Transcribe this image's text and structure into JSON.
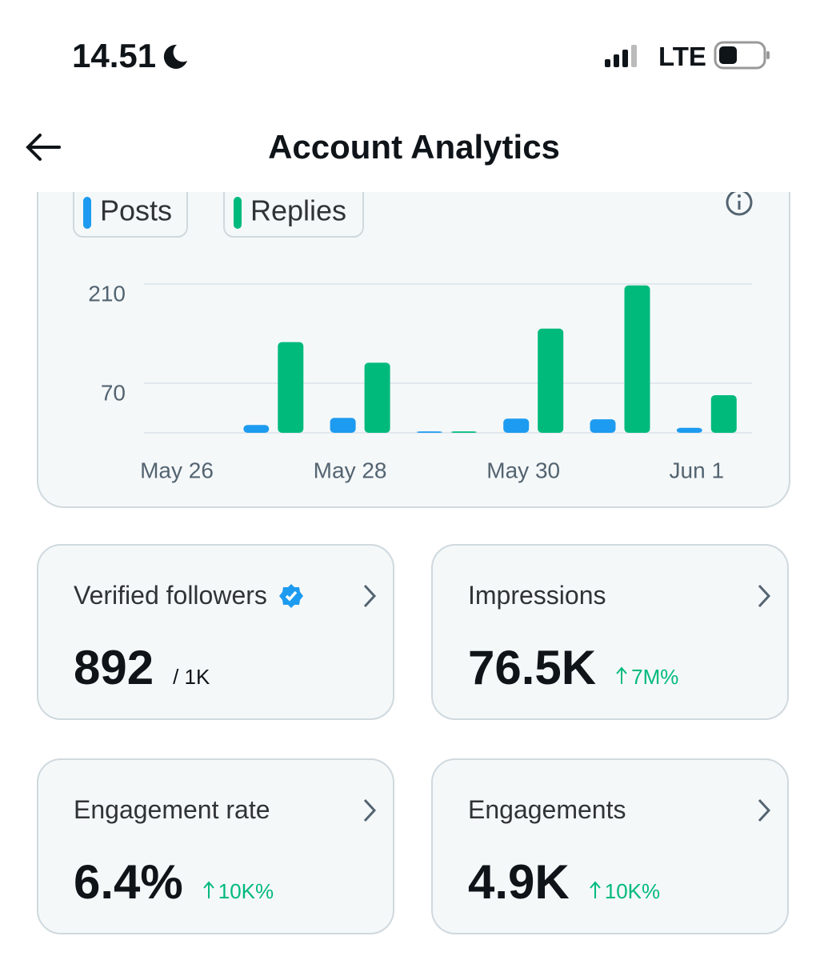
{
  "status_bar": {
    "time": "14.51",
    "network": "LTE"
  },
  "header": {
    "title": "Account Analytics"
  },
  "chart_data": {
    "type": "bar",
    "categories": [
      "May 26",
      null,
      "May 28",
      null,
      "May 30",
      null,
      "Jun 1"
    ],
    "series": [
      {
        "name": "Posts",
        "color": "#1d9bf0",
        "values": [
          null,
          11,
          21,
          2,
          20,
          19,
          7
        ]
      },
      {
        "name": "Replies",
        "color": "#00ba7c",
        "values": [
          null,
          128,
          99,
          2,
          147,
          208,
          53
        ]
      }
    ],
    "ylim": [
      0,
      210
    ],
    "yticks": [
      70,
      210
    ],
    "grid": true
  },
  "cards": [
    {
      "title": "Verified followers",
      "value": "892",
      "suffix": "/ 1K"
    },
    {
      "title": "Impressions",
      "value": "76.5K",
      "change": "7M%"
    },
    {
      "title": "Engagement rate",
      "value": "6.4%",
      "change": "10K%"
    },
    {
      "title": "Engagements",
      "value": "4.9K",
      "change": "10K%"
    }
  ]
}
